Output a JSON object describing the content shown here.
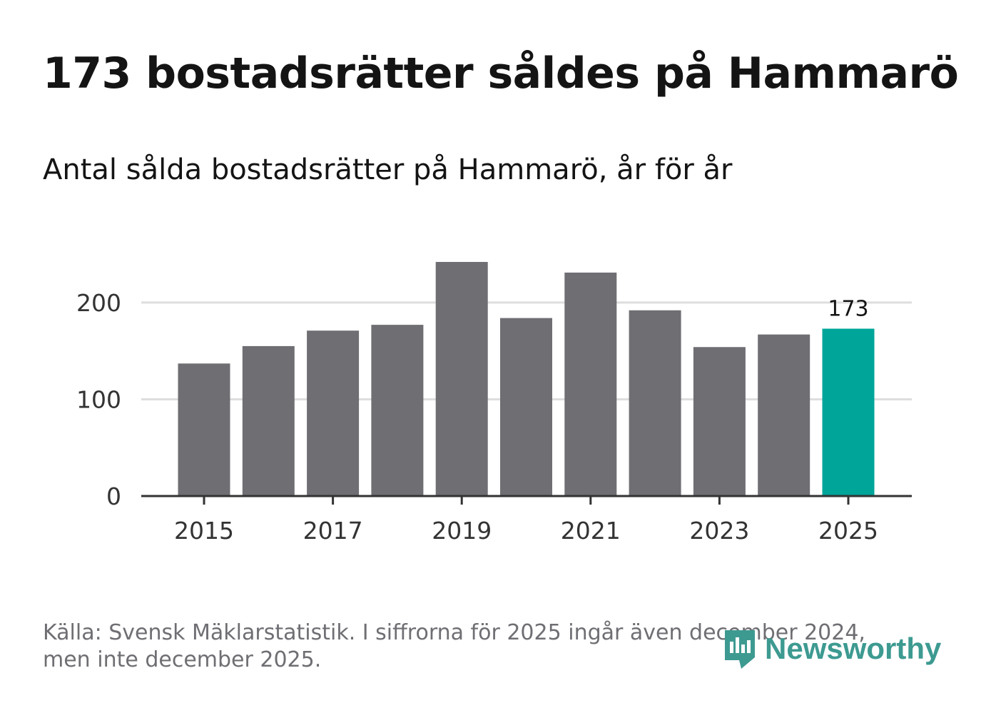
{
  "title": "173 bostadsrätter såldes på Hammarö",
  "subtitle": "Antal sålda bostadsrätter på Hammarö, år för år",
  "source": "Källa: Svensk Mäklarstatistik. I siffrorna för 2025 ingår även december 2024, men inte december 2025.",
  "logo_text": "Newsworthy",
  "colors": {
    "bar": "#6f6e73",
    "highlight": "#00a59a",
    "grid": "#dedede",
    "axis": "#333333",
    "text": "#141414"
  },
  "chart_data": {
    "type": "bar",
    "categories": [
      "2015",
      "2016",
      "2017",
      "2018",
      "2019",
      "2020",
      "2021",
      "2022",
      "2023",
      "2024",
      "2025"
    ],
    "values": [
      137,
      155,
      171,
      177,
      242,
      184,
      231,
      192,
      154,
      167,
      173
    ],
    "highlight_index": 10,
    "data_labels": [
      {
        "index": 10,
        "text": "173"
      }
    ],
    "x_tick_labels": [
      "2015",
      "2017",
      "2019",
      "2021",
      "2023",
      "2025"
    ],
    "y_tick_labels": [
      "0",
      "100",
      "200"
    ],
    "yticks": [
      0,
      100,
      200
    ],
    "ylim": [
      0,
      242
    ],
    "grid": true,
    "xlabel": "",
    "ylabel": ""
  }
}
